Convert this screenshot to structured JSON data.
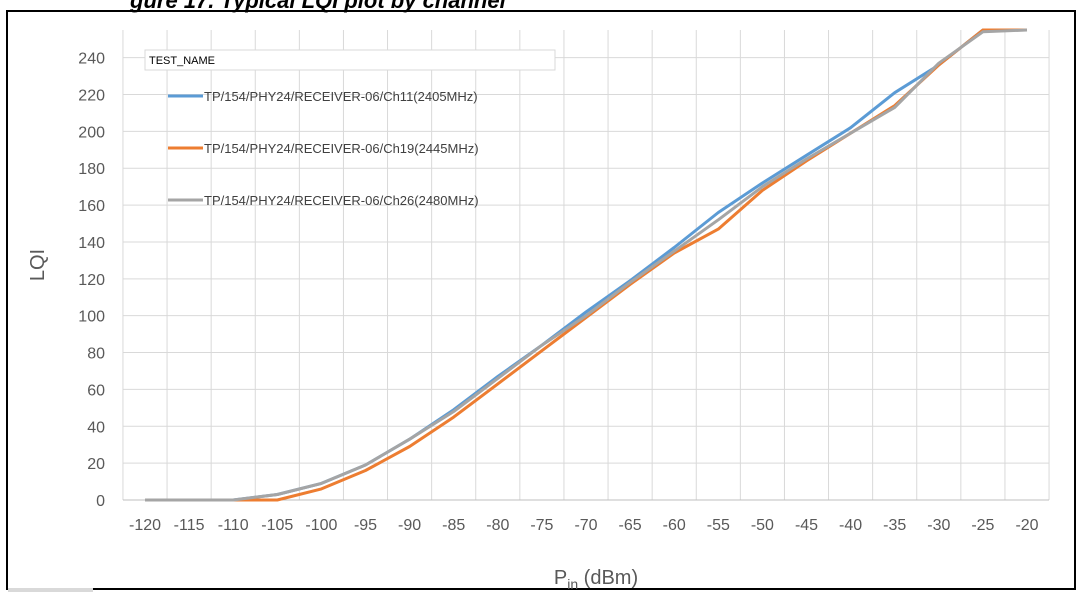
{
  "chart_data": {
    "type": "line",
    "title": "",
    "clipped_title": "gure 17. Typical LQI plot by channel",
    "xlabel_main": "P",
    "xlabel_sub": "in",
    "xlabel_unit": " (dBm)",
    "ylabel": "LQI",
    "xlim": [
      -120,
      -20
    ],
    "ylim": [
      0,
      255
    ],
    "x_ticks": [
      -120,
      -115,
      -110,
      -105,
      -100,
      -95,
      -90,
      -85,
      -80,
      -75,
      -70,
      -65,
      -60,
      -55,
      -50,
      -45,
      -40,
      -35,
      -30,
      -25,
      -20
    ],
    "y_ticks": [
      0,
      20,
      40,
      60,
      80,
      100,
      120,
      140,
      160,
      180,
      200,
      220,
      240
    ],
    "grid": true,
    "legend": {
      "title": "TEST_NAME",
      "placement": "top-left"
    },
    "x": [
      -120,
      -115,
      -110,
      -105,
      -100,
      -95,
      -90,
      -85,
      -80,
      -75,
      -70,
      -65,
      -60,
      -55,
      -50,
      -45,
      -40,
      -35,
      -30,
      -25,
      -20
    ],
    "series": [
      {
        "name": "TP/154/PHY24/RECEIVER-06/Ch11(2405MHz)",
        "color": "#5b9bd5",
        "values": [
          0,
          0,
          0,
          3,
          9,
          19,
          33,
          49,
          67,
          84,
          102,
          119,
          137,
          156,
          172,
          187,
          202,
          221,
          236,
          255,
          255
        ]
      },
      {
        "name": "TP/154/PHY24/RECEIVER-06/Ch19(2445MHz)",
        "color": "#ed7d31",
        "values": [
          0,
          0,
          0,
          0,
          6,
          16,
          29,
          45,
          63,
          81,
          99,
          117,
          134,
          147,
          168,
          184,
          199,
          214,
          236,
          256,
          255
        ]
      },
      {
        "name": "TP/154/PHY24/RECEIVER-06/Ch26(2480MHz)",
        "color": "#a5a5a5",
        "values": [
          0,
          0,
          0,
          3,
          9,
          19,
          33,
          48,
          66,
          84,
          100,
          118,
          135,
          152,
          170,
          185,
          199,
          213,
          237,
          254,
          255
        ]
      }
    ]
  }
}
